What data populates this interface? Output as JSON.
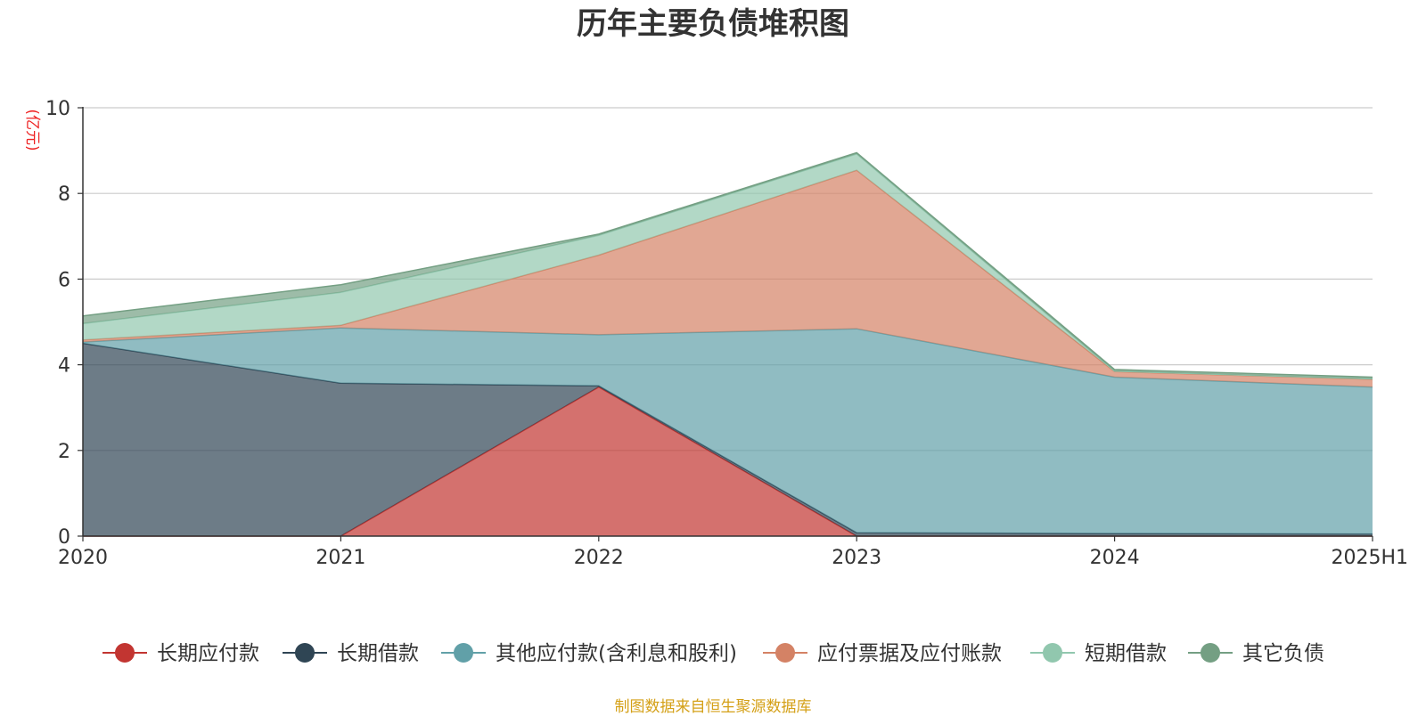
{
  "chart_data": {
    "type": "area",
    "stacked": true,
    "title": "历年主要负债堆积图",
    "ylabel": "(亿元)",
    "xlabel": "",
    "categories": [
      "2020",
      "2021",
      "2022",
      "2023",
      "2024",
      "2025H1"
    ],
    "ylim": [
      0,
      10
    ],
    "yticks": [
      0,
      2,
      4,
      6,
      8,
      10
    ],
    "grid": true,
    "legend_position": "bottom",
    "series": [
      {
        "name": "长期应付款",
        "color": "#c23531",
        "values": [
          0,
          0,
          3.48,
          0,
          0,
          0
        ]
      },
      {
        "name": "长期借款",
        "color": "#2f4554",
        "values": [
          4.5,
          3.57,
          0.03,
          0.08,
          0.06,
          0.05
        ]
      },
      {
        "name": "其他应付款(含利息和股利)",
        "color": "#61a0a8",
        "values": [
          0.03,
          1.29,
          1.19,
          4.76,
          3.65,
          3.43
        ]
      },
      {
        "name": "应付票据及应付账款",
        "color": "#d48265",
        "values": [
          0.05,
          0.06,
          1.86,
          3.7,
          0.13,
          0.18
        ]
      },
      {
        "name": "短期借款",
        "color": "#91c7ae",
        "values": [
          0.38,
          0.77,
          0.46,
          0.38,
          0.01,
          0.01
        ]
      },
      {
        "name": "其它负债",
        "color": "#749f83",
        "values": [
          0.18,
          0.18,
          0.03,
          0.03,
          0.04,
          0.04
        ]
      }
    ],
    "source": "制图数据来自恒生聚源数据库"
  }
}
